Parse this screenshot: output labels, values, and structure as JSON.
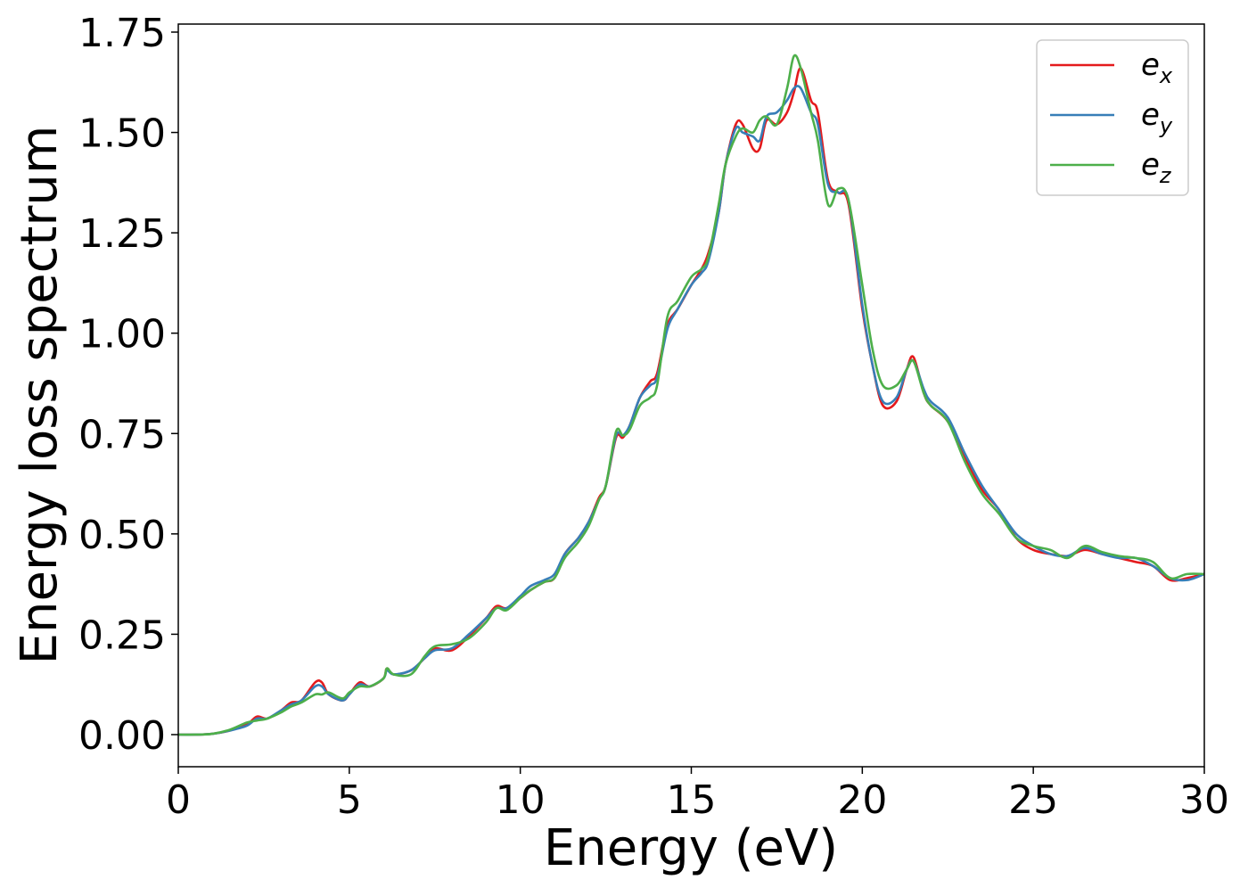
{
  "chart_data": {
    "type": "line",
    "xlabel": "Energy (eV)",
    "ylabel": "Energy loss spectrum",
    "xlim": [
      0,
      30
    ],
    "ylim": [
      -0.08,
      1.77
    ],
    "xticks": [
      0,
      5,
      10,
      15,
      20,
      25,
      30
    ],
    "xtick_labels": [
      "0",
      "5",
      "10",
      "15",
      "20",
      "25",
      "30"
    ],
    "yticks": [
      0,
      0.25,
      0.5,
      0.75,
      1.0,
      1.25,
      1.5,
      1.75
    ],
    "ytick_labels": [
      "0.00",
      "0.25",
      "0.50",
      "0.75",
      "1.00",
      "1.25",
      "1.50",
      "1.75"
    ],
    "grid": false,
    "legend_position": "top-right",
    "series": [
      {
        "name": "e_x",
        "label_base": "e",
        "label_sub": "x",
        "color": "#e41a1c",
        "points": [
          [
            0,
            0.0
          ],
          [
            0.5,
            0.0
          ],
          [
            1.0,
            0.002
          ],
          [
            1.5,
            0.01
          ],
          [
            2.0,
            0.025
          ],
          [
            2.3,
            0.045
          ],
          [
            2.6,
            0.04
          ],
          [
            3.0,
            0.06
          ],
          [
            3.3,
            0.08
          ],
          [
            3.6,
            0.085
          ],
          [
            4.0,
            0.13
          ],
          [
            4.2,
            0.13
          ],
          [
            4.4,
            0.1
          ],
          [
            4.8,
            0.085
          ],
          [
            5.0,
            0.1
          ],
          [
            5.3,
            0.13
          ],
          [
            5.6,
            0.12
          ],
          [
            6.0,
            0.14
          ],
          [
            6.1,
            0.165
          ],
          [
            6.3,
            0.15
          ],
          [
            6.8,
            0.16
          ],
          [
            7.2,
            0.19
          ],
          [
            7.5,
            0.215
          ],
          [
            8.0,
            0.21
          ],
          [
            8.5,
            0.245
          ],
          [
            9.0,
            0.29
          ],
          [
            9.3,
            0.32
          ],
          [
            9.6,
            0.315
          ],
          [
            10.0,
            0.34
          ],
          [
            10.3,
            0.36
          ],
          [
            10.7,
            0.38
          ],
          [
            11.0,
            0.39
          ],
          [
            11.3,
            0.45
          ],
          [
            11.7,
            0.49
          ],
          [
            12.0,
            0.53
          ],
          [
            12.3,
            0.59
          ],
          [
            12.5,
            0.62
          ],
          [
            12.8,
            0.74
          ],
          [
            13.0,
            0.74
          ],
          [
            13.2,
            0.77
          ],
          [
            13.5,
            0.84
          ],
          [
            13.8,
            0.88
          ],
          [
            14.0,
            0.9
          ],
          [
            14.3,
            1.02
          ],
          [
            14.6,
            1.06
          ],
          [
            15.0,
            1.12
          ],
          [
            15.3,
            1.16
          ],
          [
            15.5,
            1.2
          ],
          [
            15.8,
            1.3
          ],
          [
            16.0,
            1.42
          ],
          [
            16.3,
            1.52
          ],
          [
            16.5,
            1.52
          ],
          [
            16.8,
            1.46
          ],
          [
            17.0,
            1.46
          ],
          [
            17.2,
            1.53
          ],
          [
            17.5,
            1.52
          ],
          [
            17.8,
            1.55
          ],
          [
            18.0,
            1.6
          ],
          [
            18.2,
            1.66
          ],
          [
            18.5,
            1.58
          ],
          [
            18.7,
            1.55
          ],
          [
            19.0,
            1.38
          ],
          [
            19.3,
            1.35
          ],
          [
            19.6,
            1.32
          ],
          [
            20.0,
            1.06
          ],
          [
            20.3,
            0.92
          ],
          [
            20.6,
            0.82
          ],
          [
            21.0,
            0.83
          ],
          [
            21.3,
            0.91
          ],
          [
            21.5,
            0.94
          ],
          [
            21.8,
            0.85
          ],
          [
            22.0,
            0.82
          ],
          [
            22.5,
            0.78
          ],
          [
            23.0,
            0.69
          ],
          [
            23.5,
            0.61
          ],
          [
            24.0,
            0.56
          ],
          [
            24.5,
            0.49
          ],
          [
            25.0,
            0.46
          ],
          [
            25.5,
            0.45
          ],
          [
            26.0,
            0.445
          ],
          [
            26.5,
            0.46
          ],
          [
            27.0,
            0.45
          ],
          [
            27.5,
            0.44
          ],
          [
            28.0,
            0.43
          ],
          [
            28.5,
            0.42
          ],
          [
            29.0,
            0.385
          ],
          [
            29.5,
            0.39
          ],
          [
            30.0,
            0.4
          ]
        ]
      },
      {
        "name": "e_y",
        "label_base": "e",
        "label_sub": "y",
        "color": "#377eb8",
        "points": [
          [
            0,
            0.0
          ],
          [
            0.5,
            0.0
          ],
          [
            1.0,
            0.002
          ],
          [
            1.5,
            0.01
          ],
          [
            2.0,
            0.022
          ],
          [
            2.3,
            0.04
          ],
          [
            2.6,
            0.04
          ],
          [
            3.0,
            0.06
          ],
          [
            3.3,
            0.075
          ],
          [
            3.6,
            0.085
          ],
          [
            4.0,
            0.12
          ],
          [
            4.2,
            0.12
          ],
          [
            4.4,
            0.1
          ],
          [
            4.8,
            0.085
          ],
          [
            5.0,
            0.1
          ],
          [
            5.3,
            0.125
          ],
          [
            5.6,
            0.12
          ],
          [
            6.0,
            0.14
          ],
          [
            6.1,
            0.16
          ],
          [
            6.3,
            0.15
          ],
          [
            6.8,
            0.16
          ],
          [
            7.2,
            0.19
          ],
          [
            7.5,
            0.21
          ],
          [
            8.0,
            0.215
          ],
          [
            8.5,
            0.25
          ],
          [
            9.0,
            0.29
          ],
          [
            9.3,
            0.315
          ],
          [
            9.6,
            0.315
          ],
          [
            10.0,
            0.345
          ],
          [
            10.3,
            0.37
          ],
          [
            10.7,
            0.385
          ],
          [
            11.0,
            0.4
          ],
          [
            11.3,
            0.45
          ],
          [
            11.7,
            0.49
          ],
          [
            12.0,
            0.53
          ],
          [
            12.3,
            0.585
          ],
          [
            12.5,
            0.62
          ],
          [
            12.8,
            0.745
          ],
          [
            13.0,
            0.745
          ],
          [
            13.2,
            0.77
          ],
          [
            13.5,
            0.84
          ],
          [
            13.8,
            0.87
          ],
          [
            14.0,
            0.89
          ],
          [
            14.3,
            1.01
          ],
          [
            14.6,
            1.06
          ],
          [
            15.0,
            1.12
          ],
          [
            15.3,
            1.15
          ],
          [
            15.5,
            1.18
          ],
          [
            15.8,
            1.3
          ],
          [
            16.0,
            1.42
          ],
          [
            16.3,
            1.51
          ],
          [
            16.5,
            1.5
          ],
          [
            16.8,
            1.49
          ],
          [
            17.0,
            1.48
          ],
          [
            17.2,
            1.54
          ],
          [
            17.5,
            1.55
          ],
          [
            17.8,
            1.58
          ],
          [
            18.0,
            1.61
          ],
          [
            18.2,
            1.61
          ],
          [
            18.5,
            1.55
          ],
          [
            18.7,
            1.52
          ],
          [
            19.0,
            1.37
          ],
          [
            19.3,
            1.35
          ],
          [
            19.6,
            1.33
          ],
          [
            20.0,
            1.07
          ],
          [
            20.3,
            0.92
          ],
          [
            20.6,
            0.83
          ],
          [
            21.0,
            0.84
          ],
          [
            21.3,
            0.91
          ],
          [
            21.5,
            0.93
          ],
          [
            21.8,
            0.86
          ],
          [
            22.0,
            0.83
          ],
          [
            22.5,
            0.79
          ],
          [
            23.0,
            0.7
          ],
          [
            23.5,
            0.62
          ],
          [
            24.0,
            0.56
          ],
          [
            24.5,
            0.5
          ],
          [
            25.0,
            0.47
          ],
          [
            25.5,
            0.45
          ],
          [
            26.0,
            0.445
          ],
          [
            26.5,
            0.465
          ],
          [
            27.0,
            0.45
          ],
          [
            27.5,
            0.44
          ],
          [
            28.0,
            0.44
          ],
          [
            28.5,
            0.42
          ],
          [
            29.0,
            0.39
          ],
          [
            29.5,
            0.385
          ],
          [
            30.0,
            0.4
          ]
        ]
      },
      {
        "name": "e_z",
        "label_base": "e",
        "label_sub": "z",
        "color": "#4daf4a",
        "points": [
          [
            0,
            0.0
          ],
          [
            0.5,
            0.0
          ],
          [
            1.0,
            0.002
          ],
          [
            1.5,
            0.012
          ],
          [
            2.0,
            0.03
          ],
          [
            2.3,
            0.035
          ],
          [
            2.6,
            0.04
          ],
          [
            3.0,
            0.055
          ],
          [
            3.3,
            0.07
          ],
          [
            3.6,
            0.08
          ],
          [
            4.0,
            0.1
          ],
          [
            4.2,
            0.1
          ],
          [
            4.4,
            0.105
          ],
          [
            4.8,
            0.09
          ],
          [
            5.0,
            0.105
          ],
          [
            5.3,
            0.12
          ],
          [
            5.6,
            0.12
          ],
          [
            6.0,
            0.14
          ],
          [
            6.1,
            0.165
          ],
          [
            6.3,
            0.15
          ],
          [
            6.8,
            0.15
          ],
          [
            7.2,
            0.195
          ],
          [
            7.5,
            0.22
          ],
          [
            8.0,
            0.225
          ],
          [
            8.5,
            0.24
          ],
          [
            9.0,
            0.28
          ],
          [
            9.3,
            0.315
          ],
          [
            9.6,
            0.31
          ],
          [
            10.0,
            0.34
          ],
          [
            10.3,
            0.36
          ],
          [
            10.7,
            0.38
          ],
          [
            11.0,
            0.39
          ],
          [
            11.3,
            0.44
          ],
          [
            11.7,
            0.48
          ],
          [
            12.0,
            0.52
          ],
          [
            12.3,
            0.585
          ],
          [
            12.5,
            0.62
          ],
          [
            12.8,
            0.755
          ],
          [
            13.0,
            0.745
          ],
          [
            13.2,
            0.76
          ],
          [
            13.5,
            0.82
          ],
          [
            13.8,
            0.84
          ],
          [
            14.0,
            0.87
          ],
          [
            14.3,
            1.04
          ],
          [
            14.6,
            1.08
          ],
          [
            15.0,
            1.14
          ],
          [
            15.3,
            1.16
          ],
          [
            15.5,
            1.19
          ],
          [
            15.8,
            1.32
          ],
          [
            16.0,
            1.42
          ],
          [
            16.3,
            1.49
          ],
          [
            16.5,
            1.51
          ],
          [
            16.8,
            1.5
          ],
          [
            17.0,
            1.53
          ],
          [
            17.2,
            1.54
          ],
          [
            17.5,
            1.52
          ],
          [
            17.8,
            1.61
          ],
          [
            18.0,
            1.69
          ],
          [
            18.2,
            1.66
          ],
          [
            18.5,
            1.55
          ],
          [
            18.7,
            1.48
          ],
          [
            19.0,
            1.32
          ],
          [
            19.3,
            1.36
          ],
          [
            19.6,
            1.33
          ],
          [
            20.0,
            1.12
          ],
          [
            20.3,
            0.96
          ],
          [
            20.6,
            0.87
          ],
          [
            21.0,
            0.87
          ],
          [
            21.3,
            0.91
          ],
          [
            21.5,
            0.93
          ],
          [
            21.8,
            0.85
          ],
          [
            22.0,
            0.82
          ],
          [
            22.5,
            0.78
          ],
          [
            23.0,
            0.68
          ],
          [
            23.5,
            0.6
          ],
          [
            24.0,
            0.55
          ],
          [
            24.5,
            0.49
          ],
          [
            25.0,
            0.47
          ],
          [
            25.5,
            0.46
          ],
          [
            26.0,
            0.44
          ],
          [
            26.5,
            0.47
          ],
          [
            27.0,
            0.455
          ],
          [
            27.5,
            0.445
          ],
          [
            28.0,
            0.44
          ],
          [
            28.5,
            0.43
          ],
          [
            29.0,
            0.39
          ],
          [
            29.5,
            0.4
          ],
          [
            30.0,
            0.4
          ]
        ]
      }
    ]
  }
}
